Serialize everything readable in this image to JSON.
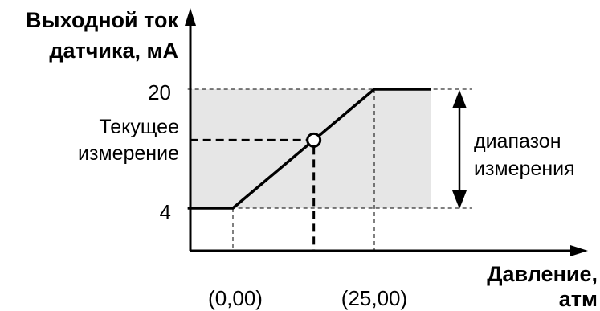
{
  "chart_data": {
    "type": "line",
    "ylabel": [
      "Выходной ток",
      "датчика, мА"
    ],
    "xlabel": [
      "Давление,",
      "атм"
    ],
    "x_ticks": [
      {
        "label": "(0,00)",
        "value": 0
      },
      {
        "label": "(25,00)",
        "value": 25
      }
    ],
    "y_ticks": [
      {
        "label": "20",
        "value": 20
      },
      {
        "label": "4",
        "value": 4
      }
    ],
    "series": [
      {
        "x": [
          -8,
          0,
          25,
          35
        ],
        "y": [
          4,
          4,
          20,
          20
        ]
      }
    ],
    "current_point": {
      "x": 14.3,
      "y": 13.15
    },
    "current_label": [
      "Текущее",
      "измерение"
    ],
    "range_label": [
      "диапазон",
      "измерения"
    ],
    "shaded_region": {
      "x": [
        -8,
        35
      ],
      "y": [
        4,
        20
      ]
    },
    "colors": {
      "line": "#000000",
      "shade": "#e6e6e6",
      "point_fill": "#ffffff"
    }
  }
}
